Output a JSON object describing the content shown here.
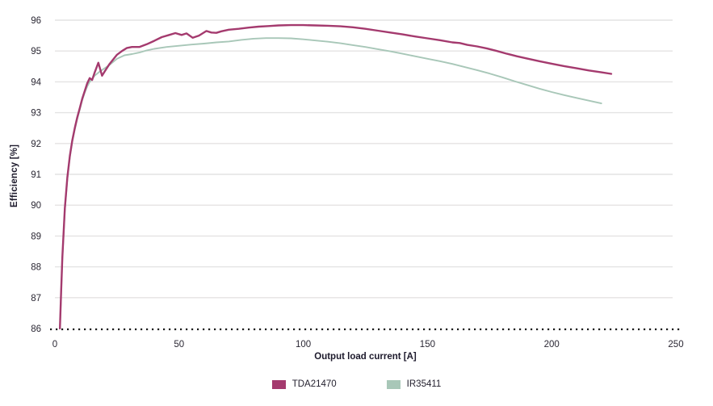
{
  "chart_data": {
    "type": "line",
    "title": "",
    "xlabel": "Output load current [A]",
    "ylabel": "Efficiency [%]",
    "xlim": [
      0,
      250
    ],
    "ylim": [
      86,
      96
    ],
    "x_ticks": [
      0,
      50,
      100,
      150,
      200,
      250
    ],
    "y_ticks": [
      86,
      87,
      88,
      89,
      90,
      91,
      92,
      93,
      94,
      95,
      96
    ],
    "grid": "horizontal",
    "gridline_color": "#e4e3e3",
    "baseline_style": "dotted-black",
    "legend_position": "bottom-center",
    "series": [
      {
        "name": "TDA21470",
        "color": "#a43a6e",
        "points": [
          [
            2,
            86.0
          ],
          [
            2.5,
            87.2
          ],
          [
            3,
            88.3
          ],
          [
            4,
            89.9
          ],
          [
            5,
            90.9
          ],
          [
            6,
            91.6
          ],
          [
            7,
            92.1
          ],
          [
            8,
            92.5
          ],
          [
            9,
            92.85
          ],
          [
            10,
            93.15
          ],
          [
            11,
            93.45
          ],
          [
            12,
            93.7
          ],
          [
            13,
            93.95
          ],
          [
            14,
            94.12
          ],
          [
            15,
            94.06
          ],
          [
            16,
            94.3
          ],
          [
            17.5,
            94.62
          ],
          [
            19,
            94.2
          ],
          [
            20,
            94.33
          ],
          [
            22,
            94.58
          ],
          [
            25,
            94.88
          ],
          [
            27,
            95.0
          ],
          [
            29,
            95.1
          ],
          [
            31,
            95.13
          ],
          [
            34,
            95.13
          ],
          [
            37,
            95.22
          ],
          [
            40,
            95.33
          ],
          [
            43,
            95.45
          ],
          [
            46,
            95.52
          ],
          [
            48.5,
            95.58
          ],
          [
            51,
            95.52
          ],
          [
            53,
            95.57
          ],
          [
            55.5,
            95.43
          ],
          [
            58,
            95.5
          ],
          [
            61,
            95.65
          ],
          [
            63,
            95.6
          ],
          [
            65,
            95.59
          ],
          [
            67,
            95.64
          ],
          [
            70,
            95.69
          ],
          [
            74,
            95.72
          ],
          [
            78,
            95.76
          ],
          [
            82,
            95.79
          ],
          [
            86,
            95.81
          ],
          [
            90,
            95.83
          ],
          [
            95,
            95.84
          ],
          [
            100,
            95.84
          ],
          [
            105,
            95.83
          ],
          [
            110,
            95.82
          ],
          [
            115,
            95.8
          ],
          [
            120,
            95.77
          ],
          [
            125,
            95.72
          ],
          [
            130,
            95.66
          ],
          [
            135,
            95.6
          ],
          [
            140,
            95.54
          ],
          [
            145,
            95.47
          ],
          [
            150,
            95.41
          ],
          [
            155,
            95.35
          ],
          [
            160,
            95.28
          ],
          [
            163,
            95.26
          ],
          [
            166,
            95.2
          ],
          [
            170,
            95.15
          ],
          [
            174,
            95.08
          ],
          [
            178,
            95.0
          ],
          [
            182,
            94.91
          ],
          [
            186,
            94.83
          ],
          [
            190,
            94.76
          ],
          [
            195,
            94.67
          ],
          [
            200,
            94.59
          ],
          [
            205,
            94.51
          ],
          [
            210,
            94.44
          ],
          [
            215,
            94.37
          ],
          [
            220,
            94.31
          ],
          [
            224,
            94.26
          ]
        ]
      },
      {
        "name": "IR35411",
        "color": "#a8c7b8",
        "points": [
          [
            2,
            86.0
          ],
          [
            2.5,
            87.15
          ],
          [
            3,
            88.25
          ],
          [
            4,
            89.85
          ],
          [
            5,
            90.85
          ],
          [
            6,
            91.55
          ],
          [
            7,
            92.05
          ],
          [
            8,
            92.45
          ],
          [
            9,
            92.8
          ],
          [
            10,
            93.1
          ],
          [
            11,
            93.4
          ],
          [
            12,
            93.65
          ],
          [
            13,
            93.85
          ],
          [
            14,
            94.0
          ],
          [
            16,
            94.2
          ],
          [
            18,
            94.33
          ],
          [
            20,
            94.44
          ],
          [
            22,
            94.55
          ],
          [
            25,
            94.75
          ],
          [
            28,
            94.86
          ],
          [
            31,
            94.9
          ],
          [
            34,
            94.95
          ],
          [
            37,
            95.02
          ],
          [
            40,
            95.07
          ],
          [
            45,
            95.13
          ],
          [
            50,
            95.17
          ],
          [
            55,
            95.21
          ],
          [
            60,
            95.24
          ],
          [
            65,
            95.28
          ],
          [
            70,
            95.31
          ],
          [
            75,
            95.36
          ],
          [
            80,
            95.4
          ],
          [
            85,
            95.42
          ],
          [
            90,
            95.42
          ],
          [
            95,
            95.41
          ],
          [
            100,
            95.38
          ],
          [
            105,
            95.34
          ],
          [
            110,
            95.3
          ],
          [
            115,
            95.25
          ],
          [
            120,
            95.19
          ],
          [
            125,
            95.13
          ],
          [
            130,
            95.06
          ],
          [
            135,
            94.99
          ],
          [
            140,
            94.91
          ],
          [
            145,
            94.83
          ],
          [
            150,
            94.75
          ],
          [
            155,
            94.67
          ],
          [
            160,
            94.58
          ],
          [
            165,
            94.48
          ],
          [
            170,
            94.38
          ],
          [
            175,
            94.27
          ],
          [
            180,
            94.15
          ],
          [
            185,
            94.02
          ],
          [
            190,
            93.9
          ],
          [
            195,
            93.78
          ],
          [
            200,
            93.67
          ],
          [
            205,
            93.57
          ],
          [
            210,
            93.48
          ],
          [
            215,
            93.39
          ],
          [
            220,
            93.3
          ]
        ]
      }
    ]
  }
}
